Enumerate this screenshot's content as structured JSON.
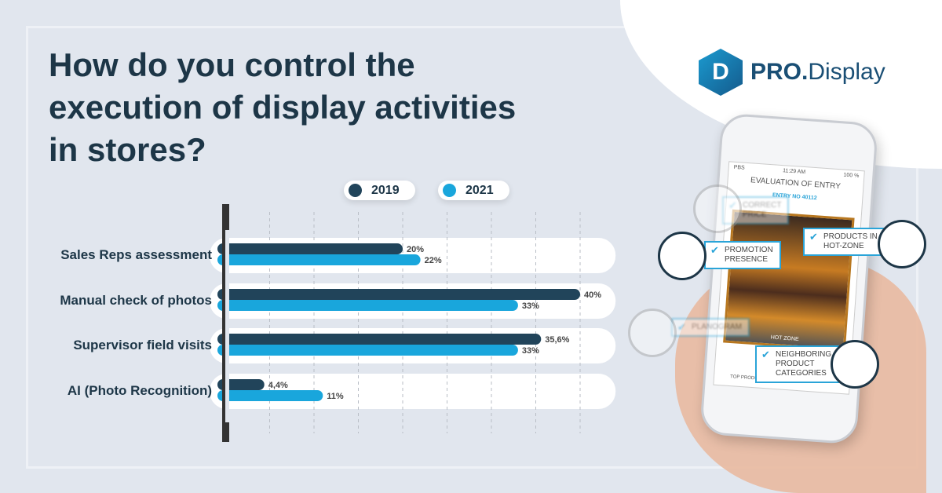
{
  "title": "How do you control the execution of display activities in stores?",
  "logo": {
    "bold": "PRO.",
    "rest": "Display",
    "mark": "D"
  },
  "phone": {
    "carrier": "PBS",
    "time": "11:29 AM",
    "battery": "100 %",
    "screen_title": "EVALUATION OF ENTRY",
    "entry": "ENTRY NO 40112",
    "hot_zone": "HOT ZONE",
    "bottom": "TOP PRODUCT IN HOT ZONE",
    "tags": [
      "CORRECT\nPRICE",
      "PROMOTION\nPRESENCE",
      "PRODUCTS IN\nHOT-ZONE",
      "PLANOGRAM",
      "NEIGHBORING\nPRODUCT\nCATEGORIES"
    ]
  },
  "colors": {
    "s2019": "#21445a",
    "s2021": "#19a6dc"
  },
  "chart_data": {
    "type": "bar",
    "orientation": "horizontal",
    "title": "How do you control the execution of display activities in stores?",
    "categories": [
      "Sales Reps assessment",
      "Manual check of photos",
      "Supervisor field visits",
      "AI (Photo Recognition)"
    ],
    "series": [
      {
        "name": "2019",
        "values": [
          20,
          40,
          35.6,
          4.4
        ],
        "labels": [
          "20%",
          "40%",
          "35,6%",
          "4,4%"
        ]
      },
      {
        "name": "2021",
        "values": [
          22,
          33,
          33,
          11
        ],
        "labels": [
          "22%",
          "33%",
          "33%",
          "11%"
        ]
      }
    ],
    "xlim": [
      0,
      44
    ],
    "grid": true,
    "grid_step": 5,
    "legend": "top"
  }
}
